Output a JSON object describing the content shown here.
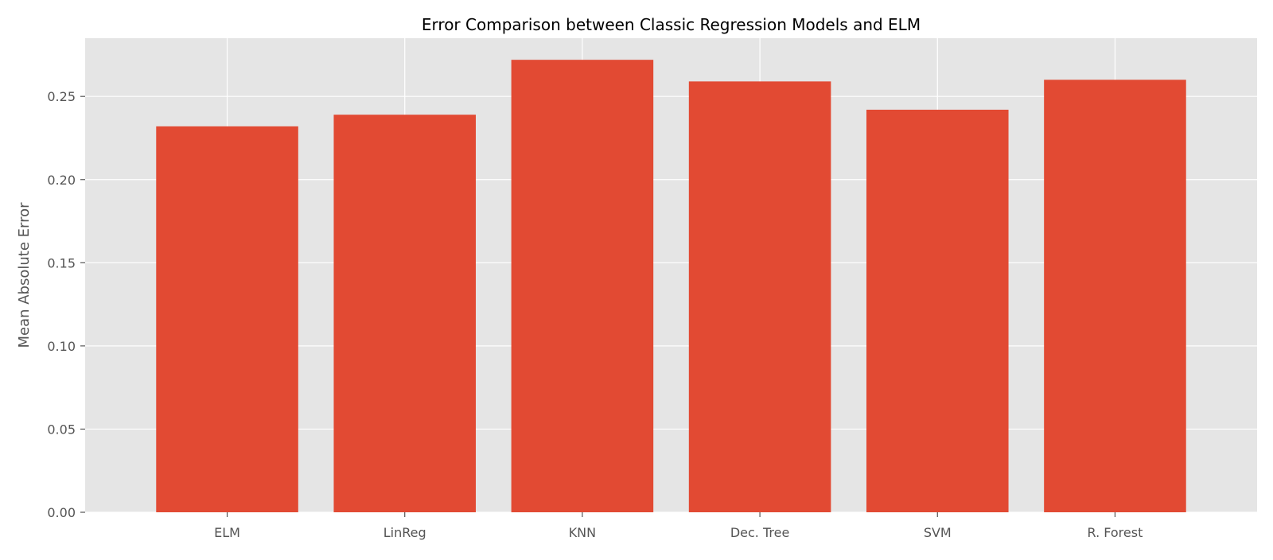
{
  "chart_data": {
    "type": "bar",
    "title": "Error Comparison between Classic Regression Models and ELM",
    "xlabel": "",
    "ylabel": "Mean Absolute Error",
    "categories": [
      "ELM",
      "LinReg",
      "KNN",
      "Dec. Tree",
      "SVM",
      "R. Forest"
    ],
    "values": [
      0.232,
      0.239,
      0.272,
      0.259,
      0.242,
      0.26
    ],
    "ylim": [
      0,
      0.285
    ],
    "yticks": [
      0.0,
      0.05,
      0.1,
      0.15,
      0.2,
      0.25
    ],
    "ytick_labels": [
      "0.00",
      "0.05",
      "0.10",
      "0.15",
      "0.20",
      "0.25"
    ],
    "grid": true,
    "legend": "none",
    "colors": {
      "bar": "#E24A33",
      "plot_background": "#E5E5E5",
      "grid": "#FFFFFF",
      "tick_text": "#555555",
      "title_text": "#000000"
    }
  }
}
